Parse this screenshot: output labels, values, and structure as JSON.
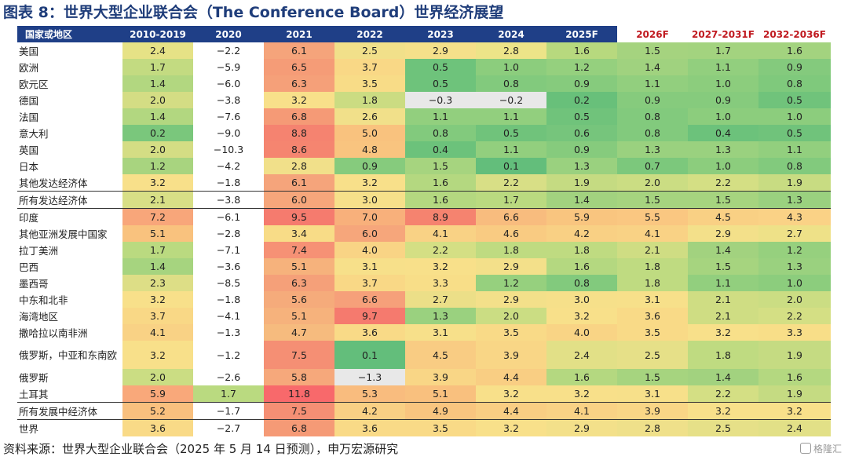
{
  "title": "图表 8：世界大型企业联合会（The Conference Board）世界经济展望",
  "table": {
    "header": [
      {
        "label": "国家或地区",
        "highlight": false
      },
      {
        "label": "2010-2019",
        "highlight": false
      },
      {
        "label": "2020",
        "highlight": false
      },
      {
        "label": "2021",
        "highlight": false
      },
      {
        "label": "2022",
        "highlight": false
      },
      {
        "label": "2023",
        "highlight": false
      },
      {
        "label": "2024",
        "highlight": false
      },
      {
        "label": "2025F",
        "highlight": false
      },
      {
        "label": "2026F",
        "highlight": true
      },
      {
        "label": "2027-2031F",
        "highlight": true
      },
      {
        "label": "2032-2036F",
        "highlight": true
      }
    ],
    "rows": [
      {
        "name": "美国",
        "values": [
          "2.4",
          "−2.2",
          "6.1",
          "2.5",
          "2.9",
          "2.8",
          "1.6",
          "1.5",
          "1.7",
          "1.6"
        ],
        "colors": [
          "#e6e286",
          "#ffffff",
          "#f5a47b",
          "#f1e08a",
          "#f5e08a",
          "#ede488",
          "#b7d97e",
          "#a5d37f",
          "#a3d37f",
          "#a3d37f"
        ]
      },
      {
        "name": "欧洲",
        "values": [
          "1.7",
          "−5.9",
          "6.5",
          "3.7",
          "0.5",
          "1.0",
          "1.2",
          "1.4",
          "1.1",
          "0.9"
        ],
        "colors": [
          "#c3db81",
          "#ffffff",
          "#f59c77",
          "#f9d886",
          "#6ec37b",
          "#8ccd7d",
          "#95d07e",
          "#a0d27f",
          "#92cf7e",
          "#84ca7d"
        ]
      },
      {
        "name": "欧元区",
        "values": [
          "1.4",
          "−6.0",
          "6.3",
          "3.5",
          "0.5",
          "0.8",
          "0.9",
          "1.1",
          "1.0",
          "0.8"
        ],
        "colors": [
          "#b2d780",
          "#ffffff",
          "#f5a079",
          "#f8dc87",
          "#6ec37b",
          "#82ca7d",
          "#86cb7d",
          "#92cf7e",
          "#8ccd7d",
          "#7fc97c"
        ]
      },
      {
        "name": "德国",
        "values": [
          "2.0",
          "−3.8",
          "3.2",
          "1.8",
          "−0.3",
          "−0.2",
          "0.2",
          "0.9",
          "0.9",
          "0.5"
        ],
        "colors": [
          "#d4dd84",
          "#ffffff",
          "#f8e08a",
          "#cbdc82",
          "#e8e8e8",
          "#e8e8e8",
          "#68c07a",
          "#86cb7d",
          "#86cb7d",
          "#70c37b"
        ]
      },
      {
        "name": "法国",
        "values": [
          "1.4",
          "−7.6",
          "6.8",
          "2.6",
          "1.1",
          "1.1",
          "0.5",
          "0.8",
          "1.0",
          "1.0"
        ],
        "colors": [
          "#b2d780",
          "#ffffff",
          "#f59a76",
          "#f1e08a",
          "#92cf7e",
          "#92cf7e",
          "#70c37b",
          "#82ca7d",
          "#8ccd7d",
          "#8ccd7d"
        ]
      },
      {
        "name": "意大利",
        "values": [
          "0.2",
          "−9.0",
          "8.8",
          "5.0",
          "0.8",
          "0.5",
          "0.6",
          "0.8",
          "0.4",
          "0.5"
        ],
        "colors": [
          "#7ac77c",
          "#ffffff",
          "#f58370",
          "#f9c27e",
          "#82ca7d",
          "#70c37b",
          "#76c57c",
          "#82ca7d",
          "#6cc27b",
          "#70c37b"
        ]
      },
      {
        "name": "英国",
        "values": [
          "2.0",
          "−10.3",
          "8.6",
          "4.8",
          "0.4",
          "1.1",
          "0.9",
          "1.3",
          "1.3",
          "1.1"
        ],
        "colors": [
          "#d4dd84",
          "#ffffff",
          "#f58570",
          "#f9c47f",
          "#6cc27b",
          "#92cf7e",
          "#86cb7d",
          "#9ad17f",
          "#9ad17f",
          "#92cf7e"
        ]
      },
      {
        "name": "日本",
        "values": [
          "1.2",
          "−4.2",
          "2.8",
          "0.9",
          "1.5",
          "0.1",
          "1.3",
          "0.7",
          "1.0",
          "0.8"
        ],
        "colors": [
          "#a8d47f",
          "#ffffff",
          "#f1e08a",
          "#86cb7d",
          "#a6d47f",
          "#63be7b",
          "#9ad17f",
          "#7cc87c",
          "#8ccd7d",
          "#82ca7d"
        ]
      },
      {
        "name": "其他发达经济体",
        "values": [
          "3.2",
          "−1.8",
          "6.1",
          "3.2",
          "1.6",
          "2.2",
          "1.9",
          "2.0",
          "2.2",
          "1.9"
        ],
        "colors": [
          "#f8e08a",
          "#ffffff",
          "#f5a47b",
          "#f8e08a",
          "#b4d880",
          "#d8df86",
          "#c5db82",
          "#cbdd83",
          "#d4df84",
          "#c8dc82"
        ]
      },
      {
        "name": "所有发达经济体",
        "values": [
          "2.1",
          "−3.8",
          "6.0",
          "3.0",
          "1.6",
          "1.7",
          "1.4",
          "1.5",
          "1.5",
          "1.3"
        ],
        "colors": [
          "#d8df86",
          "#ffffff",
          "#f6a67b",
          "#f6e08a",
          "#b4d880",
          "#bada80",
          "#a2d27f",
          "#a6d47f",
          "#a6d47f",
          "#9ad17f"
        ]
      },
      {
        "name": "印度",
        "values": [
          "7.2",
          "−6.1",
          "9.5",
          "7.0",
          "8.9",
          "6.6",
          "5.9",
          "5.5",
          "4.5",
          "4.3"
        ],
        "colors": [
          "#f8a67a",
          "#ffffff",
          "#f57b6e",
          "#f8b07b",
          "#f5836f",
          "#f8bc7e",
          "#f9c57f",
          "#fac781",
          "#f9d084",
          "#fad286"
        ]
      },
      {
        "name": "其他亚洲发展中国家",
        "values": [
          "5.1",
          "−2.8",
          "3.4",
          "6.0",
          "4.1",
          "4.6",
          "4.2",
          "4.1",
          "2.9",
          "2.7"
        ],
        "colors": [
          "#f9c27e",
          "#ffffff",
          "#f8dc87",
          "#f6a67b",
          "#f9d285",
          "#f9cb82",
          "#f9d084",
          "#f9d285",
          "#f3e08a",
          "#eee188"
        ]
      },
      {
        "name": "拉丁美洲",
        "values": [
          "1.7",
          "−7.1",
          "7.4",
          "4.0",
          "2.2",
          "1.8",
          "1.8",
          "2.1",
          "1.4",
          "1.2"
        ],
        "colors": [
          "#bada80",
          "#ffffff",
          "#f69175",
          "#f9d485",
          "#d4df84",
          "#bfdb81",
          "#bfdb81",
          "#cfdd83",
          "#a2d27f",
          "#96d07e"
        ]
      },
      {
        "name": "巴西",
        "values": [
          "1.4",
          "−3.6",
          "5.1",
          "3.1",
          "3.2",
          "2.9",
          "1.6",
          "1.8",
          "1.5",
          "1.3"
        ],
        "colors": [
          "#a6d47f",
          "#ffffff",
          "#f6b27c",
          "#f7e08a",
          "#f8e08a",
          "#f3e08a",
          "#b4d880",
          "#bfdb81",
          "#a6d47f",
          "#9ad17f"
        ]
      },
      {
        "name": "墨西哥",
        "values": [
          "2.3",
          "−8.5",
          "6.3",
          "3.7",
          "3.3",
          "1.2",
          "0.8",
          "1.8",
          "1.1",
          "1.0"
        ],
        "colors": [
          "#ddde86",
          "#ffffff",
          "#f5a079",
          "#f9d886",
          "#f8de88",
          "#96d07e",
          "#82ca7d",
          "#bfdb81",
          "#92cf7e",
          "#8ccd7d"
        ]
      },
      {
        "name": "中东和北非",
        "values": [
          "3.2",
          "−1.8",
          "5.6",
          "6.6",
          "2.7",
          "2.9",
          "3.0",
          "3.1",
          "2.1",
          "2.0"
        ],
        "colors": [
          "#f8e08a",
          "#ffffff",
          "#f5ab7b",
          "#f6a07a",
          "#ecdf88",
          "#f3e08a",
          "#f6e08a",
          "#f7e08a",
          "#cfdd83",
          "#cbdd83"
        ]
      },
      {
        "name": "海湾地区",
        "values": [
          "3.7",
          "−4.1",
          "5.1",
          "9.7",
          "1.3",
          "2.0",
          "3.2",
          "3.6",
          "2.1",
          "2.2"
        ],
        "colors": [
          "#f9d886",
          "#ffffff",
          "#f6b27c",
          "#f57a6e",
          "#9ad17f",
          "#cbdd83",
          "#f8e08a",
          "#f9da87",
          "#cfdd83",
          "#d4df84"
        ]
      },
      {
        "name": "撒哈拉以南非洲",
        "values": [
          "4.1",
          "−1.3",
          "4.7",
          "3.6",
          "3.1",
          "3.5",
          "4.0",
          "3.5",
          "3.2",
          "3.3"
        ],
        "colors": [
          "#f9d285",
          "#ffffff",
          "#f6bb7e",
          "#f9da87",
          "#f7e08a",
          "#f9da87",
          "#f9d485",
          "#f9da87",
          "#f8e08a",
          "#f8de88"
        ]
      },
      {
        "name": "俄罗斯，中亚和东南欧",
        "values": [
          "3.2",
          "−1.2",
          "7.5",
          "0.1",
          "4.5",
          "3.9",
          "2.4",
          "2.5",
          "1.8",
          "1.9"
        ],
        "colors": [
          "#f8e08a",
          "#ffffff",
          "#f58f74",
          "#63be7b",
          "#f9cc83",
          "#f9d686",
          "#e2e087",
          "#e6e088",
          "#bfdb81",
          "#c5db82"
        ]
      },
      {
        "name": "俄罗斯",
        "values": [
          "2.0",
          "−2.6",
          "5.8",
          "−1.3",
          "3.9",
          "4.4",
          "1.6",
          "1.5",
          "1.4",
          "1.6"
        ],
        "colors": [
          "#cbdd83",
          "#ffffff",
          "#f6a87b",
          "#e8e8e8",
          "#f9d686",
          "#f9ce83",
          "#b4d880",
          "#a6d47f",
          "#a2d27f",
          "#b4d880"
        ]
      },
      {
        "name": "土耳其",
        "values": [
          "5.9",
          "1.7",
          "11.8",
          "5.3",
          "5.1",
          "3.2",
          "3.2",
          "3.1",
          "2.2",
          "1.9"
        ],
        "colors": [
          "#f9a87a",
          "#bada80",
          "#f8696b",
          "#f9bc7e",
          "#f9c07e",
          "#f8e08a",
          "#f8e08a",
          "#f7e08a",
          "#d4df84",
          "#c5db82"
        ]
      },
      {
        "name": "所有发展中经济体",
        "values": [
          "5.2",
          "−1.7",
          "7.5",
          "4.2",
          "4.9",
          "4.4",
          "4.1",
          "3.9",
          "3.2",
          "3.2"
        ],
        "colors": [
          "#f9c07e",
          "#ffffff",
          "#f58f74",
          "#f9d084",
          "#f9c57f",
          "#f9ce83",
          "#f9d285",
          "#f9d686",
          "#f8e08a",
          "#f8e08a"
        ]
      },
      {
        "name": "世界",
        "values": [
          "3.6",
          "−2.7",
          "6.8",
          "3.6",
          "3.5",
          "3.2",
          "2.9",
          "2.8",
          "2.5",
          "2.4"
        ],
        "colors": [
          "#f9da87",
          "#ffffff",
          "#f59a76",
          "#f9da87",
          "#f9da87",
          "#f8e08a",
          "#f3e08a",
          "#efe08a",
          "#e6e088",
          "#e2e087"
        ]
      }
    ]
  },
  "source": "资料来源：世界大型企业联合会（2025 年 5 月 14 日预测），申万宏源研究",
  "watermark": "格隆汇"
}
